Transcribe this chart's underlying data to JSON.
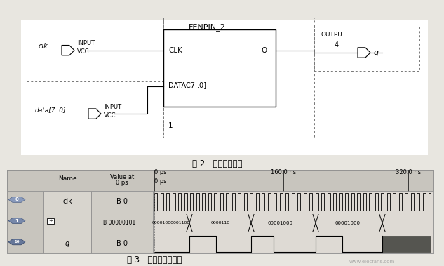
{
  "bg_color": "#e8e6e0",
  "fig_title1": "图 2   分频器原理图",
  "fig_title2": "图 3   分频器仿真波形",
  "watermark": "www.elecfans.com",
  "circuit": {
    "clk_label": "clk",
    "data_label": "data[7..0]",
    "fenpin_label": "FENPIN_2",
    "clk_pin": "CLK",
    "q_pin": "Q",
    "datac_pin": "DATAC7..0]",
    "output_label": "OUTPUT",
    "output_num": "4",
    "q_out": "q",
    "one_label": "1",
    "input_label": "INPUT",
    "vcc_label": "VCC"
  },
  "waveform": {
    "header_name": "Name",
    "header_value_line1": "Value at",
    "header_value_line2": "0 ps",
    "time_label0": "0 ps",
    "time_label0b": "0 ps",
    "time_label1": "160.0 ns",
    "time_label2": "320.0 ns",
    "rows": [
      {
        "id": "0",
        "name": "clk",
        "value": "B 0"
      },
      {
        "id": "1",
        "name": "...",
        "value": "B 00000101"
      },
      {
        "id": "10",
        "name": "q",
        "value": "B 0"
      }
    ],
    "bus_labels": [
      "00001000001100",
      "00001000"
    ]
  }
}
